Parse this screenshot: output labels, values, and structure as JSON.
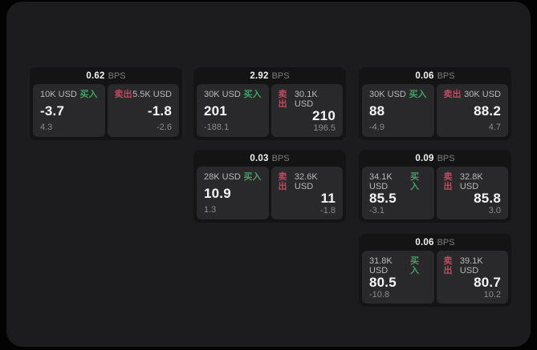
{
  "labels": {
    "bps_unit": "BPS",
    "buy": "买入",
    "sell": "卖出"
  },
  "colors": {
    "background": "#030303",
    "surface": "#1c1c1e",
    "card": "#141415",
    "panel": "#29292b",
    "buy_accent": "#43a065",
    "sell_accent": "#bf4a5f"
  },
  "cards": [
    {
      "bps_value": "0.62",
      "buy": {
        "amount": "10K USD",
        "price": "-3.7",
        "delta": "4.3"
      },
      "sell": {
        "amount": "5.5K USD",
        "price": "-1.8",
        "delta": "-2.6"
      }
    },
    {
      "bps_value": "2.92",
      "buy": {
        "amount": "30K USD",
        "price": "201",
        "delta": "-188.1"
      },
      "sell": {
        "amount": "30.1K USD",
        "price": "210",
        "delta": "196.5"
      }
    },
    {
      "bps_value": "0.06",
      "buy": {
        "amount": "30K USD",
        "price": "88",
        "delta": "-4.9"
      },
      "sell": {
        "amount": "30K USD",
        "price": "88.2",
        "delta": "4.7"
      }
    },
    {
      "bps_value": "0.03",
      "buy": {
        "amount": "28K USD",
        "price": "10.9",
        "delta": "1.3"
      },
      "sell": {
        "amount": "32.6K USD",
        "price": "11",
        "delta": "-1.8"
      }
    },
    {
      "bps_value": "0.09",
      "buy": {
        "amount": "34.1K USD",
        "price": "85.5",
        "delta": "-3.1"
      },
      "sell": {
        "amount": "32.8K USD",
        "price": "85.8",
        "delta": "3.0"
      }
    },
    {
      "bps_value": "0.06",
      "buy": {
        "amount": "31.8K USD",
        "price": "80.5",
        "delta": "-10.8"
      },
      "sell": {
        "amount": "39.1K USD",
        "price": "80.7",
        "delta": "10.2"
      }
    }
  ]
}
